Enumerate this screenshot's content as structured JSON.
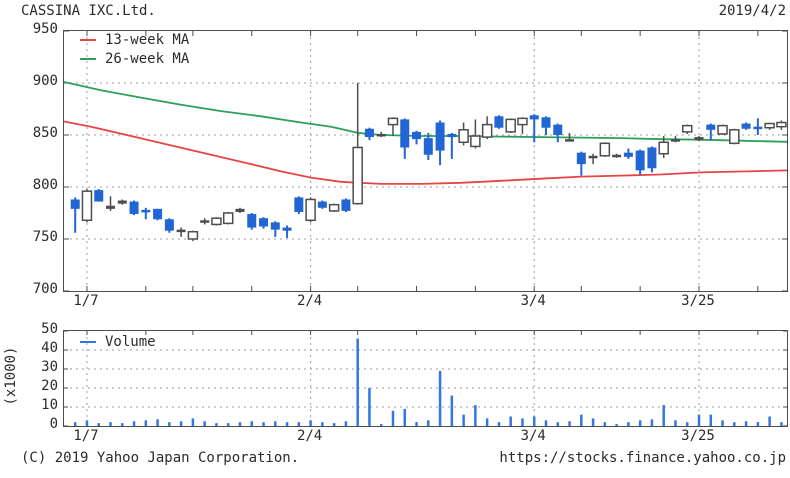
{
  "header": {
    "title": "CASSINA IXC.Ltd.",
    "date": "2019/4/2"
  },
  "footer": {
    "copyright": "(C) 2019 Yahoo Japan Corporation.",
    "url": "https://stocks.finance.yahoo.co.jp"
  },
  "colors": {
    "up_fill": "#ffffff",
    "up_border": "#4d4d4d",
    "down": "#2266d4",
    "doji": "#4d4d4d",
    "ma13": "#e64545",
    "ma26": "#2ca05a",
    "volume": "#3377e0",
    "grid": "#9e9e9e",
    "axis": "#4d4d4d",
    "text": "#2b2b2b"
  },
  "chart_data": {
    "type": "candlestick+volume",
    "title": "CASSINA IXC.Ltd.",
    "legend": [
      {
        "label": "13-week MA",
        "color_key": "ma13"
      },
      {
        "label": "26-week MA",
        "color_key": "ma26"
      }
    ],
    "volume_legend": "Volume",
    "price_axis": {
      "min": 700,
      "max": 950,
      "ticks": [
        950,
        900,
        850,
        800,
        750,
        700
      ]
    },
    "volume_axis": {
      "min": 0,
      "max": 50,
      "ticks": [
        50,
        40,
        30,
        20,
        10,
        0
      ],
      "unit_label": "(x1000)"
    },
    "x_labels": [
      {
        "label": "1/7",
        "index": 1
      },
      {
        "label": "2/4",
        "index": 20
      },
      {
        "label": "3/4",
        "index": 39
      },
      {
        "label": "3/25",
        "index": 53
      }
    ],
    "grid_indices": [
      1,
      20,
      39,
      53
    ],
    "tick_indices": [
      1,
      6,
      10,
      15,
      20,
      24,
      29,
      34,
      39,
      43,
      48,
      53,
      58
    ],
    "x_start": 11.2,
    "x_step": 11.77,
    "candles": [
      [
        788,
        790,
        756,
        779,
        "d",
        2
      ],
      [
        768,
        798,
        766,
        796,
        "u",
        3
      ],
      [
        797,
        798,
        786,
        786,
        "d",
        1.5
      ],
      [
        782,
        791,
        777,
        779,
        "j",
        2
      ],
      [
        787,
        788,
        783,
        784,
        "j",
        1.5
      ],
      [
        786,
        787,
        773,
        774,
        "d",
        2.5
      ],
      [
        778,
        780,
        769,
        776,
        "d",
        3
      ],
      [
        779,
        779,
        768,
        769,
        "d",
        3.5
      ],
      [
        769,
        770,
        756,
        758,
        "d",
        2
      ],
      [
        759,
        761,
        752,
        757,
        "j",
        2.5
      ],
      [
        750,
        758,
        748,
        757,
        "u",
        4
      ],
      [
        768,
        770,
        764,
        767,
        "j",
        2.5
      ],
      [
        764,
        771,
        763,
        770,
        "u",
        1.5
      ],
      [
        765,
        776,
        764,
        775,
        "u",
        1.5
      ],
      [
        779,
        780,
        775,
        776,
        "j",
        2
      ],
      [
        774,
        775,
        759,
        761,
        "d",
        2.5
      ],
      [
        770,
        771,
        760,
        762,
        "d",
        2
      ],
      [
        766,
        767,
        752,
        759,
        "d",
        2.5
      ],
      [
        761,
        763,
        751,
        758,
        "d",
        2
      ],
      [
        790,
        791,
        774,
        776,
        "d",
        2
      ],
      [
        768,
        790,
        766,
        788,
        "u",
        3
      ],
      [
        786,
        787,
        779,
        780,
        "d",
        2
      ],
      [
        777,
        784,
        776,
        783,
        "u",
        1.5
      ],
      [
        788,
        789,
        776,
        777,
        "d",
        2.5
      ],
      [
        784,
        900,
        783,
        838,
        "u",
        46
      ],
      [
        856,
        857,
        845,
        848,
        "d",
        20
      ],
      [
        851,
        853,
        848,
        849,
        "j",
        1
      ],
      [
        860,
        867,
        849,
        866,
        "u",
        8
      ],
      [
        865,
        866,
        827,
        838,
        "d",
        9
      ],
      [
        853,
        854,
        841,
        846,
        "d",
        2
      ],
      [
        847,
        852,
        826,
        831,
        "d",
        3
      ],
      [
        862,
        864,
        821,
        835,
        "d",
        29
      ],
      [
        851,
        852,
        827,
        848,
        "d",
        16
      ],
      [
        843,
        862,
        840,
        855,
        "u",
        6
      ],
      [
        839,
        865,
        837,
        849,
        "u",
        11
      ],
      [
        848,
        868,
        846,
        860,
        "u",
        4
      ],
      [
        868,
        869,
        856,
        857,
        "d",
        2
      ],
      [
        853,
        866,
        852,
        865,
        "u",
        5
      ],
      [
        860,
        867,
        851,
        866,
        "u",
        4
      ],
      [
        869,
        870,
        843,
        865,
        "d",
        5
      ],
      [
        867,
        868,
        850,
        857,
        "d",
        3
      ],
      [
        860,
        861,
        843,
        850,
        "d",
        2
      ],
      [
        846,
        852,
        844,
        845,
        "j",
        2.5
      ],
      [
        833,
        834,
        811,
        822,
        "d",
        6
      ],
      [
        830,
        832,
        822,
        828,
        "j",
        4
      ],
      [
        830,
        843,
        829,
        842,
        "u",
        2
      ],
      [
        831,
        832,
        828,
        829,
        "j",
        1
      ],
      [
        833,
        837,
        827,
        829,
        "d",
        2
      ],
      [
        835,
        836,
        812,
        816,
        "d",
        3
      ],
      [
        838,
        839,
        814,
        818,
        "d",
        3.5
      ],
      [
        832,
        849,
        828,
        843,
        "u",
        11
      ],
      [
        845,
        849,
        843,
        846,
        "j",
        3
      ],
      [
        853,
        860,
        851,
        859,
        "u",
        2
      ],
      [
        848,
        849,
        844,
        845,
        "j",
        6
      ],
      [
        860,
        861,
        845,
        855,
        "d",
        6
      ],
      [
        851,
        860,
        850,
        859,
        "u",
        3
      ],
      [
        842,
        856,
        841,
        855,
        "u",
        2
      ],
      [
        861,
        862,
        855,
        856,
        "d",
        2.5
      ],
      [
        858,
        866,
        850,
        857,
        "d",
        2
      ],
      [
        857,
        862,
        855,
        861,
        "u",
        5
      ],
      [
        858,
        864,
        855,
        862,
        "u",
        2
      ]
    ],
    "ma13": [
      [
        0,
        863
      ],
      [
        27,
        858
      ],
      [
        67,
        849
      ],
      [
        107,
        840
      ],
      [
        147,
        831
      ],
      [
        187,
        822
      ],
      [
        217,
        815
      ],
      [
        247,
        809
      ],
      [
        277,
        805
      ],
      [
        317,
        803
      ],
      [
        357,
        803
      ],
      [
        397,
        804
      ],
      [
        437,
        806
      ],
      [
        477,
        808
      ],
      [
        517,
        810
      ],
      [
        557,
        811
      ],
      [
        597,
        812
      ],
      [
        637,
        814
      ],
      [
        682,
        815
      ],
      [
        723,
        816
      ]
    ],
    "ma26": [
      [
        0,
        901
      ],
      [
        37,
        893
      ],
      [
        77,
        886
      ],
      [
        117,
        879
      ],
      [
        157,
        873
      ],
      [
        197,
        868
      ],
      [
        237,
        862
      ],
      [
        267,
        858
      ],
      [
        294,
        852
      ],
      [
        317,
        850
      ],
      [
        357,
        849
      ],
      [
        397,
        849
      ],
      [
        437,
        848.5
      ],
      [
        477,
        848
      ],
      [
        517,
        847.5
      ],
      [
        557,
        847
      ],
      [
        597,
        846
      ],
      [
        637,
        845.5
      ],
      [
        677,
        844.5
      ],
      [
        723,
        843.5
      ]
    ]
  }
}
